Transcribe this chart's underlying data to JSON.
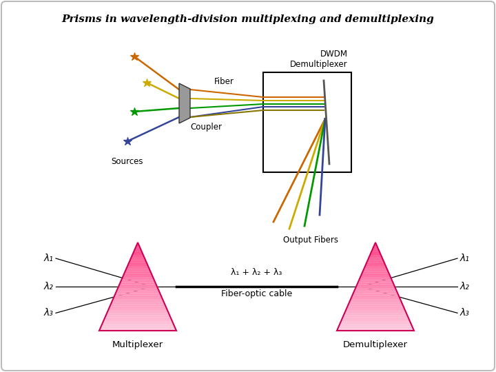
{
  "title": "Prisms in wavelength-division multiplexing and demultiplexing",
  "title_fontsize": 11,
  "bg_color": "#ffffff",
  "border_color": "#bbbbbb",
  "source_colors": [
    "#cc6600",
    "#ccaa00",
    "#009900",
    "#334499"
  ],
  "fiber_colors": [
    "#cc6600",
    "#ccaa00",
    "#009900",
    "#334499",
    "#887700"
  ],
  "output_colors": [
    "#cc6600",
    "#ccaa00",
    "#009900",
    "#334499"
  ],
  "prism_face_color": "#ff4488",
  "prism_edge_color": "#cc0055",
  "prism_gradient_bottom": "#ffccdd",
  "lambda_labels": [
    "λ₁",
    "λ₂",
    "λ₃"
  ],
  "mux_label": "Multiplexer",
  "demux_label": "Demultiplexer",
  "fiber_label": "Fiber-optic cable",
  "fiber_eq_label": "λ₁ + λ₂ + λ₃",
  "dwdm_label": "DWDM\nDemultiplexer",
  "fiber_top_label": "Fiber",
  "coupler_label": "Coupler",
  "sources_label": "Sources",
  "output_fibers_label": "Output Fibers"
}
